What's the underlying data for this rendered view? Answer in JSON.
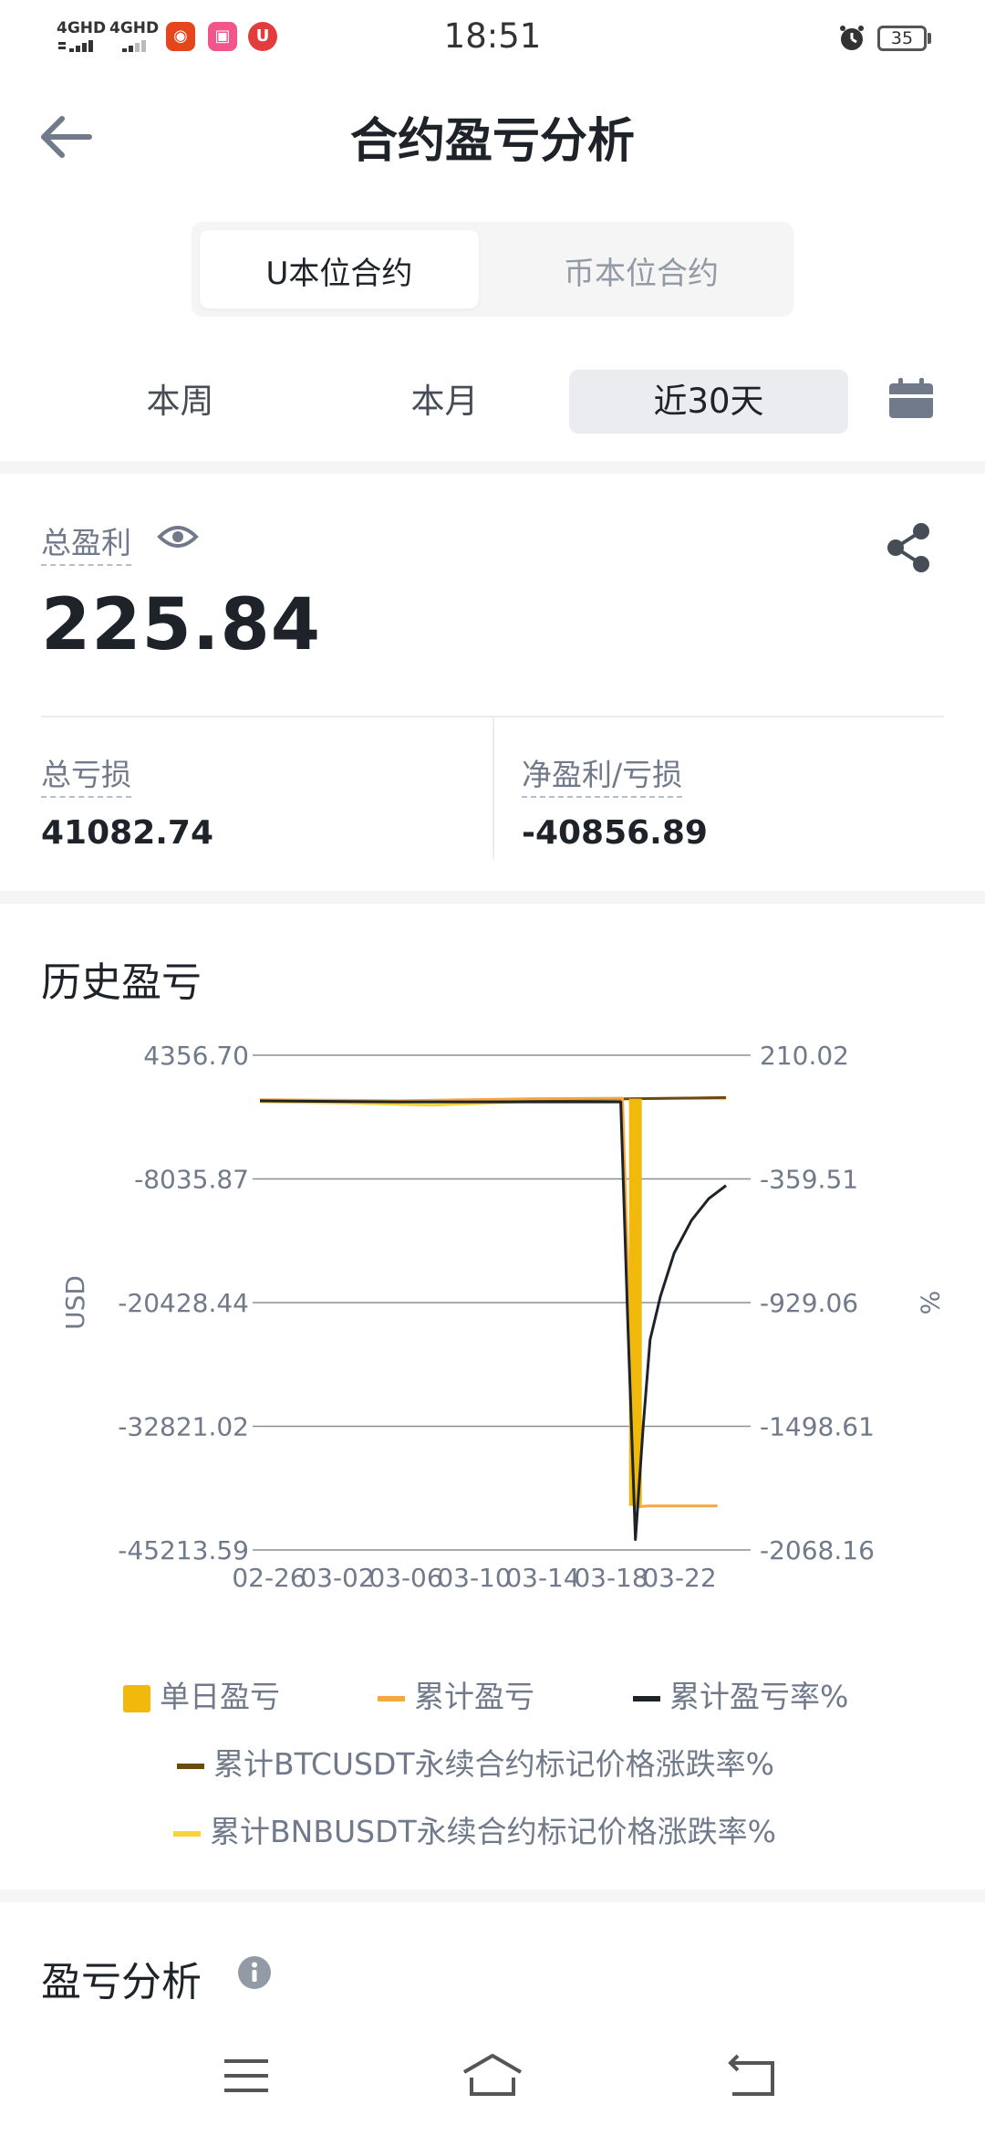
{
  "status_bar": {
    "network1": "4GHD",
    "network2": "4GHD",
    "time": "18:51",
    "battery": "35"
  },
  "header": {
    "title": "合约盈亏分析"
  },
  "contract_tabs": [
    {
      "label": "U本位合约",
      "selected": true
    },
    {
      "label": "币本位合约",
      "selected": false
    }
  ],
  "period_tabs": [
    {
      "label": "本周",
      "selected": false
    },
    {
      "label": "本月",
      "selected": false
    },
    {
      "label": "近30天",
      "selected": true
    }
  ],
  "summary": {
    "total_profit_label": "总盈利",
    "total_profit_value": "225.84",
    "total_loss_label": "总亏损",
    "total_loss_value": "41082.74",
    "net_label": "净盈利/亏损",
    "net_value": "-40856.89"
  },
  "history": {
    "title": "历史盈亏"
  },
  "analysis": {
    "title": "盈亏分析"
  },
  "legend": {
    "daily": "单日盈亏",
    "cumulative": "累计盈亏",
    "cum_rate": "累计盈亏率%",
    "btc": "累计BTCUSDT永续合约标记价格涨跌率%",
    "bnb": "累计BNBUSDT永续合约标记价格涨跌率%"
  },
  "colors": {
    "daily": "#f0b90b",
    "cumulative": "#f5a742",
    "cum_rate": "#1e2329",
    "btc": "#6b4a10",
    "bnb": "#f8d33a",
    "grid": "#8a8f98",
    "axis_text": "#707a8a"
  },
  "chart_data": {
    "type": "line",
    "ylabel_left": "USD",
    "ylabel_right": "%",
    "left_ticks": [
      "4356.70",
      "-8035.87",
      "-20428.44",
      "-32821.02",
      "-45213.59"
    ],
    "right_ticks": [
      "210.02",
      "-359.51",
      "-929.06",
      "-1498.61",
      "-2068.16"
    ],
    "x_ticks": [
      "02-26",
      "03-02",
      "03-06",
      "03-10",
      "03-14",
      "03-18",
      "03-22"
    ],
    "left_range": [
      -45213.59,
      4356.7
    ],
    "right_range": [
      -2068.16,
      210.02
    ],
    "x_range": [
      0,
      28
    ],
    "series": [
      {
        "name": "单日盈亏",
        "axis": "left",
        "style": "bar",
        "x": [
          21.75
        ],
        "values": [
          -40800
        ]
      },
      {
        "name": "累计盈亏",
        "axis": "left",
        "style": "line",
        "x": [
          0,
          4,
          8,
          12,
          16,
          21,
          21.75,
          22.5,
          26.5
        ],
        "values": [
          -100,
          -150,
          -200,
          -100,
          0,
          50,
          -40900,
          -40800,
          -40800
        ]
      },
      {
        "name": "累计盈亏率%",
        "axis": "right",
        "style": "line",
        "x": [
          0,
          8,
          16,
          20.9,
          21.3,
          21.75,
          22.2,
          22.6,
          23.2,
          24,
          25,
          26,
          27
        ],
        "values": [
          0,
          -5,
          -5,
          -5,
          -1000,
          -2020,
          -1500,
          -1100,
          -900,
          -700,
          -550,
          -450,
          -390
        ]
      },
      {
        "name": "累计BTCUSDT永续合约标记价格涨跌率%",
        "axis": "right",
        "style": "line",
        "x": [
          0,
          5,
          10,
          15,
          20,
          24,
          27
        ],
        "values": [
          2,
          0,
          -5,
          3,
          8,
          12,
          15
        ]
      },
      {
        "name": "累计BNBUSDT永续合约标记价格涨跌率%",
        "axis": "right",
        "style": "line",
        "x": [
          0,
          5,
          10,
          15,
          20,
          24,
          27
        ],
        "values": [
          -5,
          -10,
          -20,
          -5,
          8,
          12,
          10
        ]
      }
    ]
  }
}
